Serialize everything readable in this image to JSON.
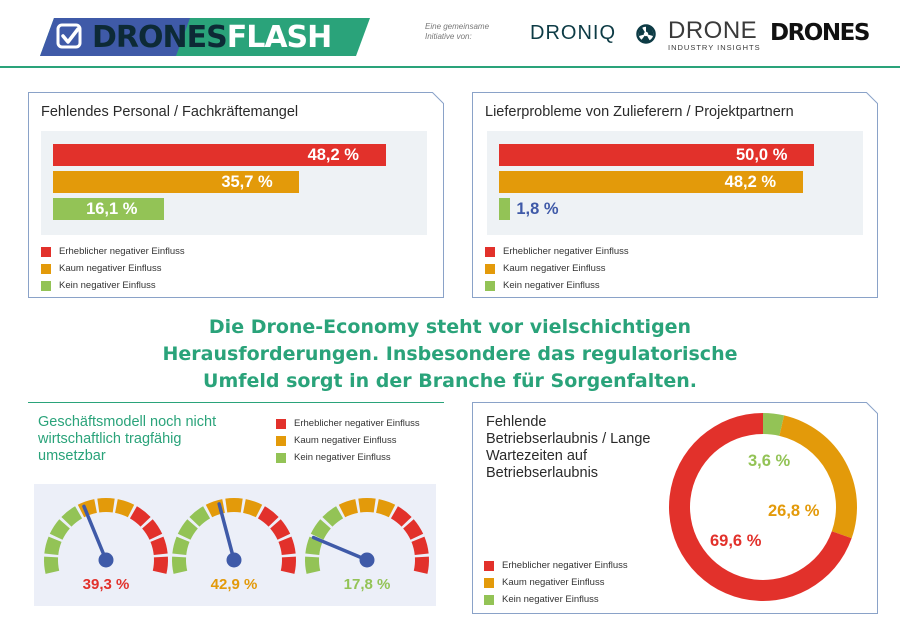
{
  "header": {
    "logo": {
      "part1": "DRONES",
      "part2": "FLASH"
    },
    "initiative_text": "Eine gemeinsame Initiative von:",
    "partners": {
      "droniq": "DRONIQ",
      "dii_main": "DRONE",
      "dii_sub": "INDUSTRY INSIGHTS",
      "drones": "DRONES"
    }
  },
  "colors": {
    "red": "#e2312b",
    "orange": "#e39a0a",
    "green": "#93c356",
    "blue_text": "#3f5aa8",
    "teal": "#2aa37a",
    "navy": "#0d2a36"
  },
  "legend": [
    "Erheblicher negativer Einfluss",
    "Kaum negativer Einfluss",
    "Kein negativer Einfluss"
  ],
  "headline": [
    "Die Drone-Economy steht vor vielschichtigen",
    "Herausforderungen. Insbesondere das regulatorische",
    "Umfeld sorgt in der Branche für Sorgenfalten."
  ],
  "chart_data": [
    {
      "type": "bar",
      "title": "Fehlendes Personal / Fachkräftemangel",
      "categories": [
        "Erheblicher negativer Einfluss",
        "Kaum negativer Einfluss",
        "Kein negativer Einfluss"
      ],
      "values": [
        48.2,
        35.7,
        16.1
      ],
      "labels": [
        "48,2 %",
        "35,7 %",
        "16,1 %"
      ],
      "legend_position": "bottom-left"
    },
    {
      "type": "bar",
      "title": "Lieferprobleme von Zulieferern / Projektpartnern",
      "categories": [
        "Erheblicher negativer Einfluss",
        "Kaum negativer Einfluss",
        "Kein negativer Einfluss"
      ],
      "values": [
        50.0,
        48.2,
        1.8
      ],
      "labels": [
        "50,0 %",
        "48,2 %",
        "1,8 %"
      ],
      "legend_position": "bottom-left"
    },
    {
      "type": "gauge",
      "title": "Geschäftsmodell noch nicht wirtschaftlich tragfähig umsetzbar",
      "categories": [
        "Erheblicher negativer Einfluss",
        "Kaum negativer Einfluss",
        "Kein negativer Einfluss"
      ],
      "values": [
        39.3,
        42.9,
        17.8
      ],
      "labels": [
        "39,3 %",
        "42,9 %",
        "17,8 %"
      ],
      "legend_position": "top-right"
    },
    {
      "type": "pie",
      "title": "Fehlende Betriebserlaubnis / Lange Wartezeiten auf Betriebserlaubnis",
      "categories": [
        "Erheblicher negativer Einfluss",
        "Kaum negativer Einfluss",
        "Kein negativer Einfluss"
      ],
      "values": [
        69.6,
        26.8,
        3.6
      ],
      "labels": [
        "69,6 %",
        "26,8 %",
        "3,6 %"
      ],
      "legend_position": "bottom-left"
    }
  ]
}
